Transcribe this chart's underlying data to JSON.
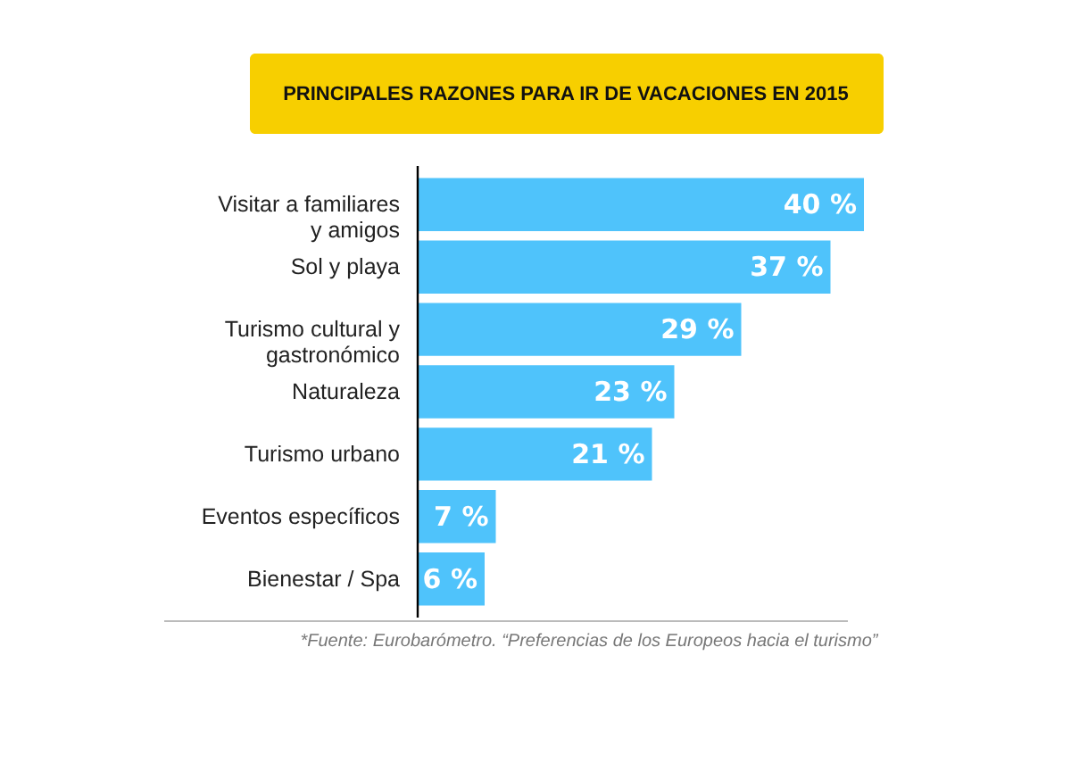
{
  "chart_data": {
    "type": "bar",
    "orientation": "horizontal",
    "title": "PRINCIPALES RAZONES PARA IR DE VACACIONES EN 2015",
    "categories": [
      "Visitar a familiares y amigos",
      "Sol y playa",
      "Turismo cultural y gastronómico",
      "Naturaleza",
      "Turismo urbano",
      "Eventos específicos",
      "Bienestar / Spa"
    ],
    "values": [
      40,
      37,
      29,
      23,
      21,
      7,
      6
    ],
    "color": "#4fc3fb",
    "value_labels": [
      "40 %",
      "37 %",
      "29 %",
      "23 %",
      "21 %",
      "7 %",
      "6 %"
    ],
    "annotations": [
      "*Fuente: Eurobarómetro. “Preferencias de los Europeos hacia el turismo”"
    ]
  }
}
